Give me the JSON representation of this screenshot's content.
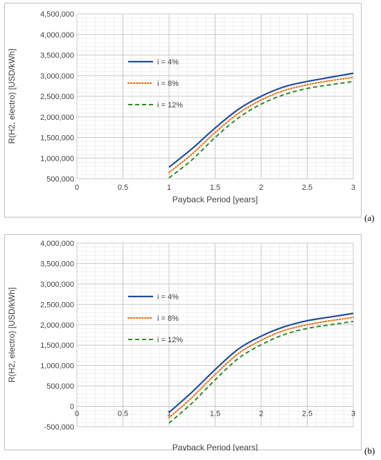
{
  "colors": {
    "series_1": "#1f4e9c",
    "series_2": "#e46c0a",
    "series_3": "#2e8b1e",
    "grid_major": "#c8c8c8",
    "grid_minor": "#e6e6e6"
  },
  "panels": [
    {
      "label": "(a)"
    },
    {
      "label": "(b)"
    }
  ],
  "chart_data": [
    {
      "type": "line",
      "xlabel": "Payback Period [years]",
      "ylabel": "R(H2, electro) [USD/kWh]",
      "xlim": [
        0,
        3
      ],
      "ylim": [
        500000,
        4500000
      ],
      "xticks": [
        0,
        0.5,
        1,
        1.5,
        2,
        2.5,
        3
      ],
      "xtick_labels": [
        "0",
        "0.5",
        "1",
        "1.5",
        "2",
        "2.5",
        "3"
      ],
      "yticks": [
        500000,
        1000000,
        1500000,
        2000000,
        2500000,
        3000000,
        3500000,
        4000000,
        4500000
      ],
      "ytick_labels": [
        "500,000",
        "1,000,000",
        "1,500,000",
        "2,000,000",
        "2,500,000",
        "3,000,000",
        "3,500,000",
        "4,000,000",
        "4,500,000"
      ],
      "grid": true,
      "legend_position": "upper-left-inside",
      "x": [
        1,
        1.25,
        1.5,
        1.75,
        2,
        2.25,
        2.5,
        2.75,
        3
      ],
      "series": [
        {
          "name": "i = 4%",
          "style": "solid",
          "values": [
            780000,
            1230000,
            1730000,
            2180000,
            2500000,
            2730000,
            2860000,
            2960000,
            3060000
          ]
        },
        {
          "name": "i = 8%",
          "style": "dotted",
          "values": [
            650000,
            1100000,
            1620000,
            2080000,
            2410000,
            2640000,
            2780000,
            2880000,
            2960000
          ]
        },
        {
          "name": "i = 12%",
          "style": "dashed",
          "values": [
            520000,
            960000,
            1500000,
            1970000,
            2310000,
            2540000,
            2690000,
            2780000,
            2860000
          ]
        }
      ]
    },
    {
      "type": "line",
      "xlabel": "Payback Period [years]",
      "ylabel": "R(H2, electro) [USD/kWh]",
      "xlim": [
        0,
        3
      ],
      "ylim": [
        -500000,
        4000000
      ],
      "xticks": [
        0,
        0.5,
        1,
        1.5,
        2,
        2.5,
        3
      ],
      "xtick_labels": [
        "0",
        "0.5",
        "1",
        "1.5",
        "2",
        "2.5",
        "3"
      ],
      "yticks": [
        -500000,
        0,
        500000,
        1000000,
        1500000,
        2000000,
        2500000,
        3000000,
        3500000,
        4000000
      ],
      "ytick_labels": [
        "-500,000",
        "0",
        "500,000",
        "1,000,000",
        "1,500,000",
        "2,000,000",
        "2,500,000",
        "3,000,000",
        "3,500,000",
        "4,000,000"
      ],
      "grid": true,
      "legend_position": "upper-left-inside",
      "x": [
        1,
        1.25,
        1.5,
        1.75,
        2,
        2.25,
        2.5,
        2.75,
        3
      ],
      "series": [
        {
          "name": "i = 4%",
          "style": "solid",
          "values": [
            -150000,
            350000,
            900000,
            1400000,
            1720000,
            1950000,
            2100000,
            2190000,
            2280000
          ]
        },
        {
          "name": "i = 8%",
          "style": "dotted",
          "values": [
            -280000,
            220000,
            780000,
            1290000,
            1620000,
            1860000,
            2000000,
            2100000,
            2180000
          ]
        },
        {
          "name": "i = 12%",
          "style": "dashed",
          "values": [
            -410000,
            80000,
            650000,
            1170000,
            1510000,
            1760000,
            1910000,
            2000000,
            2080000
          ]
        }
      ]
    }
  ]
}
